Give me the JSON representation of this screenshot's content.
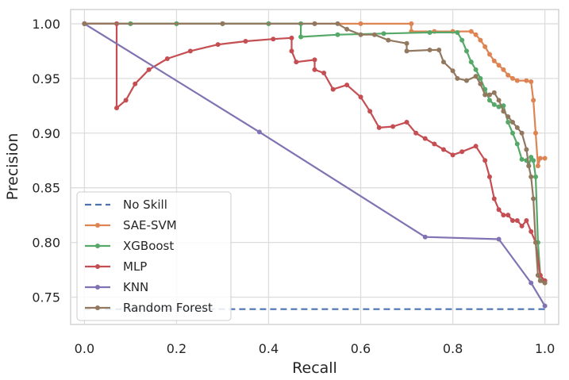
{
  "chart_data": {
    "type": "line",
    "title": "",
    "xlabel": "Recall",
    "ylabel": "Precision",
    "xlim": [
      -0.03,
      1.03
    ],
    "ylim": [
      0.725,
      1.013
    ],
    "xticks": [
      0.0,
      0.2,
      0.4,
      0.6,
      0.8,
      1.0
    ],
    "xtick_labels": [
      "0.0",
      "0.2",
      "0.4",
      "0.6",
      "0.8",
      "1.0"
    ],
    "yticks": [
      0.75,
      0.8,
      0.85,
      0.9,
      0.95,
      1.0
    ],
    "ytick_labels": [
      "0.75",
      "0.80",
      "0.85",
      "0.90",
      "0.95",
      "1.00"
    ],
    "grid": true,
    "legend_position": "bottom-left",
    "series": [
      {
        "name": "No Skill",
        "color": "#4c72b0",
        "style": "dashed",
        "markers": false,
        "x": [
          0.0,
          1.0
        ],
        "y": [
          0.739,
          0.739
        ]
      },
      {
        "name": "SAE-SVM",
        "color": "#dd8452",
        "style": "solid",
        "markers": true,
        "x": [
          0.0,
          0.1,
          0.2,
          0.3,
          0.4,
          0.5,
          0.6,
          0.71,
          0.71,
          0.76,
          0.8,
          0.84,
          0.85,
          0.86,
          0.87,
          0.88,
          0.89,
          0.9,
          0.91,
          0.92,
          0.93,
          0.94,
          0.96,
          0.97,
          0.975,
          0.98,
          0.985,
          0.99,
          1.0
        ],
        "y": [
          1.0,
          1.0,
          1.0,
          1.0,
          1.0,
          1.0,
          1.0,
          1.0,
          0.993,
          0.993,
          0.993,
          0.993,
          0.99,
          0.985,
          0.979,
          0.972,
          0.966,
          0.962,
          0.958,
          0.953,
          0.95,
          0.948,
          0.948,
          0.947,
          0.93,
          0.9,
          0.87,
          0.877,
          0.877
        ]
      },
      {
        "name": "XGBoost",
        "color": "#55a868",
        "style": "solid",
        "markers": true,
        "x": [
          0.0,
          0.1,
          0.2,
          0.3,
          0.4,
          0.47,
          0.47,
          0.55,
          0.65,
          0.75,
          0.81,
          0.82,
          0.83,
          0.84,
          0.85,
          0.86,
          0.87,
          0.88,
          0.89,
          0.9,
          0.91,
          0.92,
          0.93,
          0.94,
          0.95,
          0.96,
          0.965,
          0.97,
          0.975,
          0.98,
          0.985,
          0.99,
          0.995,
          1.0
        ],
        "y": [
          1.0,
          1.0,
          1.0,
          1.0,
          1.0,
          1.0,
          0.988,
          0.99,
          0.991,
          0.992,
          0.992,
          0.985,
          0.975,
          0.965,
          0.958,
          0.95,
          0.94,
          0.93,
          0.926,
          0.924,
          0.925,
          0.91,
          0.9,
          0.89,
          0.876,
          0.875,
          0.87,
          0.878,
          0.875,
          0.86,
          0.8,
          0.77,
          0.765,
          0.765
        ]
      },
      {
        "name": "MLP",
        "color": "#c44e52",
        "style": "solid",
        "markers": true,
        "x": [
          0.0,
          0.07,
          0.07,
          0.09,
          0.11,
          0.14,
          0.18,
          0.23,
          0.29,
          0.35,
          0.41,
          0.45,
          0.45,
          0.46,
          0.5,
          0.5,
          0.52,
          0.54,
          0.57,
          0.6,
          0.62,
          0.64,
          0.67,
          0.7,
          0.72,
          0.74,
          0.76,
          0.78,
          0.8,
          0.82,
          0.85,
          0.87,
          0.88,
          0.89,
          0.9,
          0.91,
          0.92,
          0.93,
          0.94,
          0.95,
          0.96,
          0.97,
          0.98,
          0.99,
          1.0
        ],
        "y": [
          1.0,
          1.0,
          0.923,
          0.93,
          0.945,
          0.958,
          0.968,
          0.975,
          0.981,
          0.984,
          0.986,
          0.987,
          0.975,
          0.965,
          0.967,
          0.958,
          0.955,
          0.94,
          0.944,
          0.933,
          0.92,
          0.905,
          0.906,
          0.91,
          0.9,
          0.895,
          0.89,
          0.885,
          0.88,
          0.883,
          0.888,
          0.875,
          0.86,
          0.84,
          0.83,
          0.825,
          0.825,
          0.82,
          0.82,
          0.815,
          0.82,
          0.81,
          0.8,
          0.77,
          0.765
        ]
      },
      {
        "name": "KNN",
        "color": "#8172b3",
        "style": "solid",
        "markers": true,
        "x": [
          0.0,
          0.38,
          0.74,
          0.9,
          0.97,
          1.0
        ],
        "y": [
          1.0,
          0.901,
          0.805,
          0.803,
          0.763,
          0.742
        ]
      },
      {
        "name": "Random Forest",
        "color": "#937860",
        "style": "solid",
        "markers": true,
        "x": [
          0.0,
          0.3,
          0.5,
          0.55,
          0.57,
          0.6,
          0.63,
          0.66,
          0.7,
          0.7,
          0.75,
          0.77,
          0.78,
          0.8,
          0.81,
          0.83,
          0.85,
          0.86,
          0.87,
          0.88,
          0.89,
          0.9,
          0.91,
          0.92,
          0.93,
          0.94,
          0.95,
          0.96,
          0.965,
          0.97,
          0.975,
          0.98,
          0.985,
          0.99,
          1.0
        ],
        "y": [
          1.0,
          1.0,
          1.0,
          1.0,
          0.995,
          0.99,
          0.99,
          0.985,
          0.982,
          0.975,
          0.976,
          0.976,
          0.965,
          0.957,
          0.95,
          0.948,
          0.952,
          0.945,
          0.935,
          0.935,
          0.937,
          0.93,
          0.92,
          0.915,
          0.91,
          0.905,
          0.9,
          0.885,
          0.87,
          0.86,
          0.84,
          0.8,
          0.77,
          0.765,
          0.763
        ]
      }
    ]
  }
}
